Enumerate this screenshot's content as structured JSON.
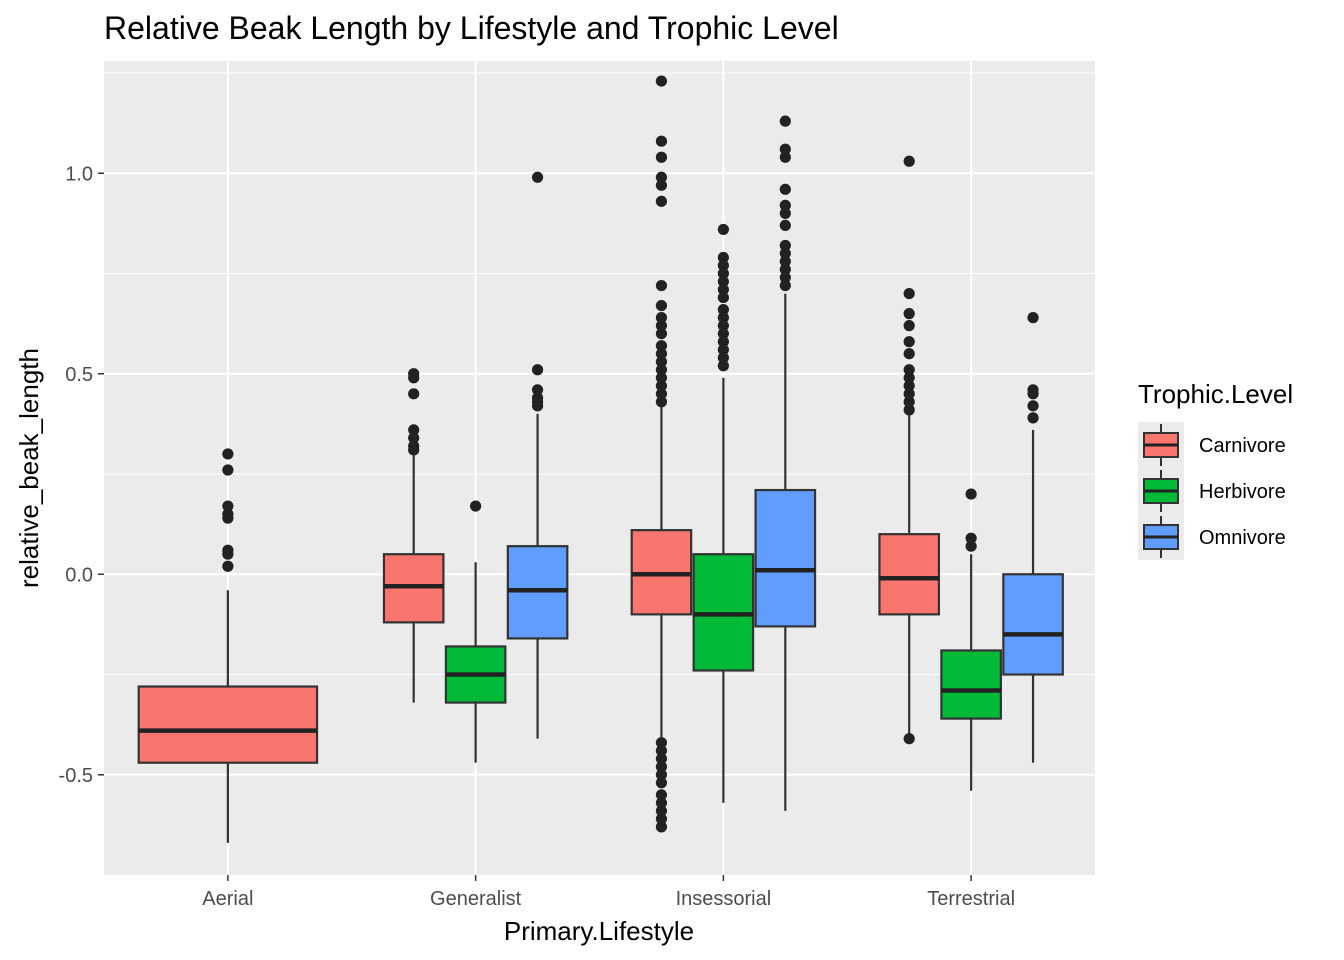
{
  "chart_data": {
    "type": "boxplot",
    "title": "Relative Beak Length by Lifestyle and Trophic Level",
    "xlabel": "Primary.Lifestyle",
    "ylabel": "relative_beak_length",
    "ylim": [
      -0.75,
      1.28
    ],
    "y_ticks": [
      -0.5,
      0.0,
      0.5,
      1.0
    ],
    "y_tick_labels": [
      "-0.5",
      "0.0",
      "0.5",
      "1.0"
    ],
    "grid": true,
    "categories": [
      "Aerial",
      "Generalist",
      "Insessorial",
      "Terrestrial"
    ],
    "legend": {
      "title": "Trophic.Level",
      "position": "right",
      "entries": [
        "Carnivore",
        "Herbivore",
        "Omnivore"
      ]
    },
    "colors": {
      "Carnivore": "#F8766D",
      "Herbivore": "#00BA38",
      "Omnivore": "#619CFF",
      "panel": "#EBEBEB",
      "grid": "#FFFFFF"
    },
    "groups_per_category": 3,
    "boxes": [
      {
        "category": "Aerial",
        "slot": 1,
        "span": 3,
        "trophic": "Carnivore",
        "q1": -0.47,
        "median": -0.39,
        "q3": -0.28,
        "whisker_low": -0.67,
        "whisker_high": -0.04,
        "outliers": [
          0.02,
          0.05,
          0.06,
          0.14,
          0.15,
          0.17,
          0.26,
          0.3
        ]
      },
      {
        "category": "Generalist",
        "slot": 0,
        "span": 1,
        "trophic": "Carnivore",
        "q1": -0.12,
        "median": -0.03,
        "q3": 0.05,
        "whisker_low": -0.32,
        "whisker_high": 0.3,
        "outliers": [
          0.31,
          0.32,
          0.34,
          0.36,
          0.45,
          0.49,
          0.5
        ]
      },
      {
        "category": "Generalist",
        "slot": 1,
        "span": 1,
        "trophic": "Herbivore",
        "q1": -0.32,
        "median": -0.25,
        "q3": -0.18,
        "whisker_low": -0.47,
        "whisker_high": 0.03,
        "outliers": [
          0.17
        ]
      },
      {
        "category": "Generalist",
        "slot": 2,
        "span": 1,
        "trophic": "Omnivore",
        "q1": -0.16,
        "median": -0.04,
        "q3": 0.07,
        "whisker_low": -0.41,
        "whisker_high": 0.4,
        "outliers": [
          0.42,
          0.43,
          0.44,
          0.46,
          0.51,
          0.99
        ]
      },
      {
        "category": "Insessorial",
        "slot": 0,
        "span": 1,
        "trophic": "Carnivore",
        "q1": -0.1,
        "median": 0.0,
        "q3": 0.11,
        "whisker_low": -0.41,
        "whisker_high": 0.42,
        "outliers": [
          -0.63,
          -0.61,
          -0.59,
          -0.57,
          -0.55,
          -0.52,
          -0.5,
          -0.48,
          -0.46,
          -0.44,
          -0.42,
          0.43,
          0.45,
          0.47,
          0.49,
          0.51,
          0.53,
          0.55,
          0.57,
          0.6,
          0.62,
          0.64,
          0.67,
          0.72,
          0.93,
          0.97,
          0.99,
          1.04,
          1.08,
          1.23
        ]
      },
      {
        "category": "Insessorial",
        "slot": 1,
        "span": 1,
        "trophic": "Herbivore",
        "q1": -0.24,
        "median": -0.1,
        "q3": 0.05,
        "whisker_low": -0.57,
        "whisker_high": 0.49,
        "outliers": [
          0.52,
          0.54,
          0.56,
          0.58,
          0.6,
          0.62,
          0.64,
          0.66,
          0.69,
          0.71,
          0.73,
          0.75,
          0.77,
          0.79,
          0.86
        ]
      },
      {
        "category": "Insessorial",
        "slot": 2,
        "span": 1,
        "trophic": "Omnivore",
        "q1": -0.13,
        "median": 0.01,
        "q3": 0.21,
        "whisker_low": -0.59,
        "whisker_high": 0.7,
        "outliers": [
          0.72,
          0.74,
          0.76,
          0.78,
          0.8,
          0.82,
          0.87,
          0.9,
          0.92,
          0.96,
          1.04,
          1.06,
          1.13
        ]
      },
      {
        "category": "Terrestrial",
        "slot": 0,
        "span": 1,
        "trophic": "Carnivore",
        "q1": -0.1,
        "median": -0.01,
        "q3": 0.1,
        "whisker_low": -0.41,
        "whisker_high": 0.4,
        "outliers": [
          -0.41,
          0.41,
          0.43,
          0.45,
          0.47,
          0.49,
          0.51,
          0.55,
          0.58,
          0.62,
          0.65,
          0.7,
          1.03
        ]
      },
      {
        "category": "Terrestrial",
        "slot": 1,
        "span": 1,
        "trophic": "Herbivore",
        "q1": -0.36,
        "median": -0.29,
        "q3": -0.19,
        "whisker_low": -0.54,
        "whisker_high": 0.05,
        "outliers": [
          0.07,
          0.09,
          0.2
        ]
      },
      {
        "category": "Terrestrial",
        "slot": 2,
        "span": 1,
        "trophic": "Omnivore",
        "q1": -0.25,
        "median": -0.15,
        "q3": -0.0,
        "whisker_low": -0.47,
        "whisker_high": 0.36,
        "outliers": [
          0.39,
          0.42,
          0.45,
          0.46,
          0.64
        ]
      }
    ]
  }
}
